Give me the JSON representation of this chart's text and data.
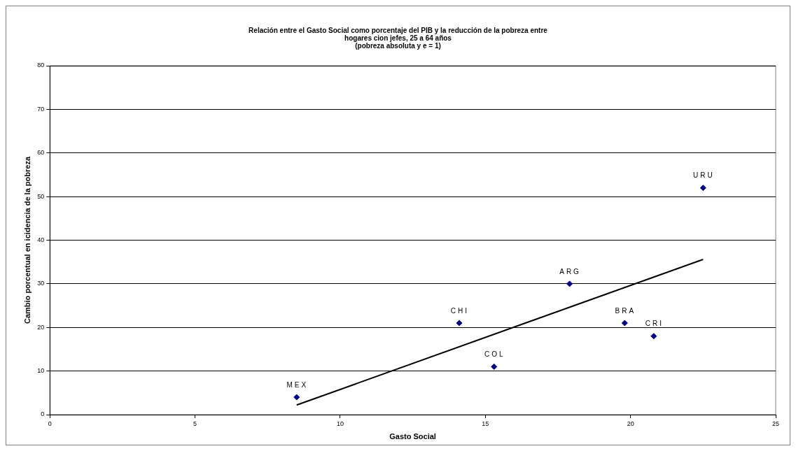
{
  "chart_data": {
    "type": "scatter",
    "title": "Relación entre el Gasto Social como porcentaje del PIB y la reducción de la pobreza entre\nhogares cion jefes, 25 a 64 años\n(pobreza absoluta y e = 1)",
    "xlabel": "Gasto Social",
    "ylabel": "Cambio porcentual en icidencia de la pobreza",
    "series": [
      {
        "color": "#000080",
        "marker": "diamond",
        "x": [
          8.5,
          14.1,
          15.3,
          17.9,
          19.8,
          20.8,
          22.5
        ],
        "values": [
          4,
          21,
          11,
          30,
          21,
          18,
          52
        ]
      },
      {
        "type": "line",
        "color": "#000000",
        "x": [
          8.5,
          22.5
        ],
        "values": [
          2.2,
          35.6
        ]
      }
    ],
    "annotations": [
      {
        "text": "MEX",
        "x": 8.5,
        "y": 4
      },
      {
        "text": "CHI",
        "x": 14.1,
        "y": 21
      },
      {
        "text": "COL",
        "x": 15.3,
        "y": 11
      },
      {
        "text": "ARG",
        "x": 17.9,
        "y": 30
      },
      {
        "text": "BRA",
        "x": 19.8,
        "y": 21
      },
      {
        "text": "CRI",
        "x": 20.8,
        "y": 18
      },
      {
        "text": "URU",
        "x": 22.5,
        "y": 52
      }
    ],
    "xlim": [
      0,
      25
    ],
    "xticks": [
      0,
      5,
      10,
      15,
      20,
      25
    ],
    "ylim": [
      0,
      80
    ],
    "yticks": [
      0,
      10,
      20,
      30,
      40,
      50,
      60,
      70,
      80
    ],
    "grid": "y",
    "legend": false
  }
}
